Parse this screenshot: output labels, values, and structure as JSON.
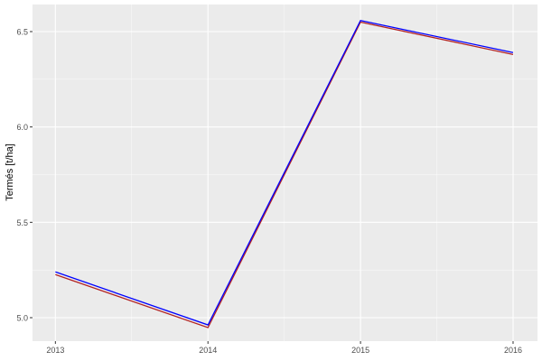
{
  "chart_data": {
    "type": "line",
    "title": "",
    "xlabel": "",
    "ylabel": "Termés [t/ha]",
    "x": [
      2013,
      2014,
      2015,
      2016
    ],
    "x_tick_labels": [
      "2013",
      "2014",
      "2015",
      "2016"
    ],
    "y_ticks": [
      5.0,
      5.5,
      6.0,
      6.5
    ],
    "y_tick_labels": [
      "5.0",
      "5.5",
      "6.0",
      "6.5"
    ],
    "xlim": [
      2012.85,
      2016.16
    ],
    "ylim": [
      4.877,
      6.642
    ],
    "grid": true,
    "legend": "none",
    "series": [
      {
        "color": "#0000ff",
        "values": [
          5.24,
          4.962,
          6.558,
          6.39
        ]
      },
      {
        "color": "#b22222",
        "values": [
          5.226,
          4.948,
          6.55,
          6.38
        ]
      }
    ],
    "colors": {
      "panel": "#ebebeb",
      "grid": "#ffffff"
    }
  }
}
